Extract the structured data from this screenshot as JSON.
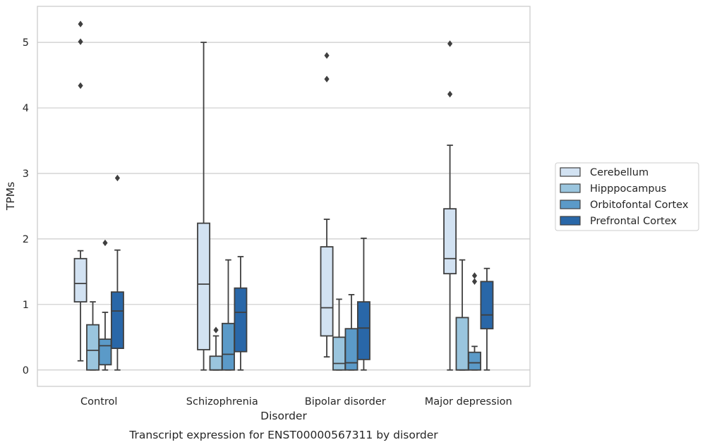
{
  "chart_data": {
    "type": "box",
    "title": "",
    "caption": "Transcript expression for ENST00000567311 by disorder",
    "xlabel": "Disorder",
    "ylabel": "TPMs",
    "ylim": [
      -0.25,
      5.55
    ],
    "yticks": [
      0,
      1,
      2,
      3,
      4,
      5
    ],
    "grid": "horizontal",
    "legend_position": "right",
    "categories": [
      "Control",
      "Schizophrenia",
      "Bipolar disorder",
      "Major depression"
    ],
    "series": [
      {
        "name": "Cerebellum",
        "color": "#d2e2f2",
        "boxes": [
          {
            "whislo": 0.14,
            "q1": 1.04,
            "med": 1.32,
            "q3": 1.7,
            "whishi": 1.82,
            "fliers": [
              5.28,
              5.01,
              4.34
            ]
          },
          {
            "whislo": 0.0,
            "q1": 0.31,
            "med": 1.31,
            "q3": 2.24,
            "whishi": 5.0,
            "fliers": []
          },
          {
            "whislo": 0.2,
            "q1": 0.52,
            "med": 0.95,
            "q3": 1.88,
            "whishi": 2.3,
            "fliers": [
              4.8,
              4.44
            ]
          },
          {
            "whislo": 0.0,
            "q1": 1.47,
            "med": 1.7,
            "q3": 2.46,
            "whishi": 3.43,
            "fliers": [
              4.98,
              4.21
            ]
          }
        ]
      },
      {
        "name": "Hipppocampus",
        "color": "#9ac5de",
        "boxes": [
          {
            "whislo": 0.0,
            "q1": 0.0,
            "med": 0.3,
            "q3": 0.69,
            "whishi": 1.04,
            "fliers": []
          },
          {
            "whislo": 0.0,
            "q1": 0.0,
            "med": 0.0,
            "q3": 0.21,
            "whishi": 0.52,
            "fliers": [
              0.61
            ]
          },
          {
            "whislo": 0.0,
            "q1": 0.0,
            "med": 0.1,
            "q3": 0.5,
            "whishi": 1.08,
            "fliers": []
          },
          {
            "whislo": 0.0,
            "q1": 0.0,
            "med": 0.0,
            "q3": 0.8,
            "whishi": 1.68,
            "fliers": []
          }
        ]
      },
      {
        "name": "Orbitofontal Cortex",
        "color": "#5b9ac8",
        "boxes": [
          {
            "whislo": 0.0,
            "q1": 0.08,
            "med": 0.37,
            "q3": 0.47,
            "whishi": 0.88,
            "fliers": [
              1.94
            ]
          },
          {
            "whislo": 0.0,
            "q1": 0.0,
            "med": 0.24,
            "q3": 0.71,
            "whishi": 1.68,
            "fliers": []
          },
          {
            "whislo": 0.0,
            "q1": 0.0,
            "med": 0.11,
            "q3": 0.63,
            "whishi": 1.15,
            "fliers": []
          },
          {
            "whislo": 0.0,
            "q1": 0.0,
            "med": 0.11,
            "q3": 0.27,
            "whishi": 0.36,
            "fliers": [
              1.44,
              1.35
            ]
          }
        ]
      },
      {
        "name": "Prefrontal Cortex",
        "color": "#2967a8",
        "boxes": [
          {
            "whislo": 0.0,
            "q1": 0.33,
            "med": 0.9,
            "q3": 1.19,
            "whishi": 1.83,
            "fliers": [
              2.93
            ]
          },
          {
            "whislo": 0.0,
            "q1": 0.28,
            "med": 0.88,
            "q3": 1.25,
            "whishi": 1.73,
            "fliers": []
          },
          {
            "whislo": 0.0,
            "q1": 0.16,
            "med": 0.64,
            "q3": 1.04,
            "whishi": 2.01,
            "fliers": []
          },
          {
            "whislo": 0.0,
            "q1": 0.63,
            "med": 0.84,
            "q3": 1.35,
            "whishi": 1.55,
            "fliers": []
          }
        ]
      }
    ]
  }
}
